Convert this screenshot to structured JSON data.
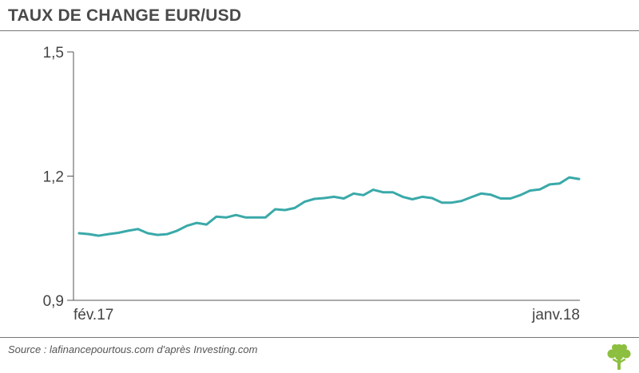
{
  "title": "TAUX DE CHANGE EUR/USD",
  "source": "Source : lafinancepourtous.com d'après Investing.com",
  "colors": {
    "line": "#3aa9a9",
    "axis": "#555555",
    "logo": "#8cbf3f"
  },
  "logo_icon": "tree-icon",
  "chart_data": {
    "type": "line",
    "title": "TAUX DE CHANGE EUR/USD",
    "xlabel": "",
    "ylabel": "",
    "ylim": [
      0.9,
      1.5
    ],
    "yticks": [
      "1,5",
      "1,2",
      "0,9"
    ],
    "ytick_values": [
      1.5,
      1.2,
      0.9
    ],
    "x_tick_labels": [
      {
        "label": "fév.17",
        "index": 0
      },
      {
        "label": "janv.18",
        "index": 51
      }
    ],
    "grid": false,
    "series": [
      {
        "values": [
          1.062,
          1.06,
          1.056,
          1.06,
          1.063,
          1.068,
          1.072,
          1.062,
          1.058,
          1.06,
          1.068,
          1.08,
          1.087,
          1.083,
          1.102,
          1.1,
          1.106,
          1.1,
          1.1,
          1.1,
          1.12,
          1.118,
          1.123,
          1.138,
          1.145,
          1.147,
          1.15,
          1.146,
          1.158,
          1.154,
          1.167,
          1.161,
          1.161,
          1.15,
          1.144,
          1.15,
          1.147,
          1.136,
          1.136,
          1.14,
          1.149,
          1.158,
          1.155,
          1.146,
          1.146,
          1.154,
          1.165,
          1.168,
          1.18,
          1.182,
          1.197,
          1.193
        ]
      }
    ]
  }
}
